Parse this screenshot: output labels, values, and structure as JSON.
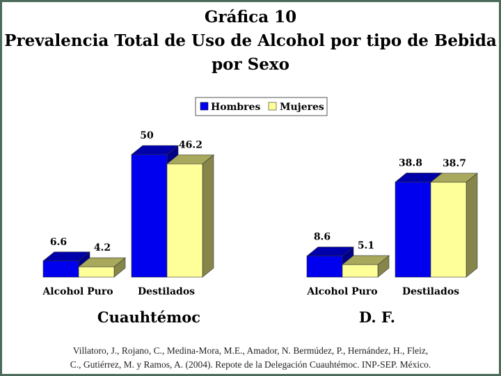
{
  "title": {
    "line1": "Gráfica 10",
    "line2": "Prevalencia Total de Uso de Alcohol por tipo de Bebida",
    "line3": "por Sexo"
  },
  "chart_data": [
    {
      "type": "bar",
      "group": "Cuauhtémoc",
      "categories": [
        "Alcohol Puro",
        "Destilados"
      ],
      "series": [
        {
          "name": "Hombres",
          "values": [
            6.6,
            50
          ],
          "labels": [
            "6.6",
            "50"
          ],
          "color": "#0000ee"
        },
        {
          "name": "Mujeres",
          "values": [
            4.2,
            46.2
          ],
          "labels": [
            "4.2",
            "46.2"
          ],
          "color": "#ffff99"
        }
      ],
      "ylim": [
        0,
        50
      ]
    },
    {
      "type": "bar",
      "group": "D. F.",
      "categories": [
        "Alcohol Puro",
        "Destilados"
      ],
      "series": [
        {
          "name": "Hombres",
          "values": [
            8.6,
            38.8
          ],
          "labels": [
            "8.6",
            "38.8"
          ],
          "color": "#0000ee"
        },
        {
          "name": "Mujeres",
          "values": [
            5.1,
            38.7
          ],
          "labels": [
            "5.1",
            "38.7"
          ],
          "color": "#ffff99"
        }
      ],
      "ylim": [
        0,
        50
      ]
    }
  ],
  "legend": {
    "items": [
      {
        "label": "Hombres",
        "color": "#0000ee"
      },
      {
        "label": "Mujeres",
        "color": "#ffff99"
      }
    ],
    "placement": "top-center"
  },
  "credit": {
    "line1": "Villatoro, J., Rojano, C., Medina-Mora, M.E., Amador, N. Bermúdez, P., Hernández, H., Fleiz,",
    "line2": "C., Gutiérrez, M. y Ramos, A. (2004). Repote de la Delegación Cuauhtémoc. INP-SEP. México."
  },
  "colors": {
    "frame": "#4d6b5a",
    "hombres": "#0000ee",
    "mujeres": "#ffff99"
  }
}
